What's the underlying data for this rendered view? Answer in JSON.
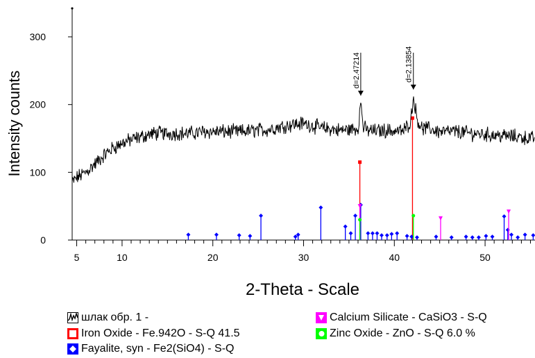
{
  "chart_data": {
    "type": "line",
    "xlabel": "2-Theta - Scale",
    "ylabel": "Intensity counts",
    "xlim": [
      4.5,
      55.5
    ],
    "ylim": [
      0,
      340
    ],
    "x_ticks": [
      5,
      10,
      20,
      30,
      40,
      50
    ],
    "y_ticks": [
      0,
      100,
      200,
      300
    ],
    "grid": false,
    "legend_position": "bottom",
    "pattern": {
      "name": "шлак обр. 1 -",
      "color": "#000000",
      "points": [
        [
          4.5,
          85
        ],
        [
          5,
          92
        ],
        [
          6,
          100
        ],
        [
          7,
          112
        ],
        [
          8,
          125
        ],
        [
          9,
          136
        ],
        [
          10,
          143
        ],
        [
          11,
          148
        ],
        [
          12,
          152
        ],
        [
          13,
          156
        ],
        [
          14,
          158
        ],
        [
          15,
          157
        ],
        [
          16,
          158
        ],
        [
          17,
          157
        ],
        [
          18,
          158
        ],
        [
          19,
          160
        ],
        [
          20,
          160
        ],
        [
          21,
          160
        ],
        [
          22,
          160
        ],
        [
          23,
          160
        ],
        [
          24,
          161
        ],
        [
          25,
          162
        ],
        [
          26,
          163
        ],
        [
          27,
          166
        ],
        [
          28,
          169
        ],
        [
          29,
          171
        ],
        [
          30,
          172
        ],
        [
          31,
          169
        ],
        [
          32,
          165
        ],
        [
          33,
          164
        ],
        [
          34,
          162
        ],
        [
          35,
          163
        ],
        [
          36,
          165
        ],
        [
          36.3,
          203
        ],
        [
          36.6,
          166
        ],
        [
          37,
          162
        ],
        [
          38,
          161
        ],
        [
          39,
          162
        ],
        [
          40,
          161
        ],
        [
          41,
          161
        ],
        [
          41.8,
          175
        ],
        [
          42.1,
          212
        ],
        [
          42.5,
          180
        ],
        [
          43,
          165
        ],
        [
          44,
          164
        ],
        [
          45,
          160
        ],
        [
          46,
          160
        ],
        [
          47,
          160
        ],
        [
          48,
          158
        ],
        [
          49,
          157
        ],
        [
          50,
          156
        ],
        [
          51,
          155
        ],
        [
          52,
          154
        ],
        [
          53,
          153
        ],
        [
          54,
          152
        ],
        [
          55,
          150
        ],
        [
          55.5,
          150
        ]
      ],
      "start_marker_y": 342
    },
    "peak_labels": [
      {
        "x": 36.3,
        "y": 203,
        "text": "d=2.47214"
      },
      {
        "x": 42.1,
        "y": 212,
        "text": "d=2.13854"
      }
    ],
    "reference_series": [
      {
        "name": "Iron Oxide - Fe.942O - S-Q 41.5",
        "color": "#ff0000",
        "marker": "square",
        "sticks": [
          [
            36.2,
            115
          ],
          [
            42.0,
            180
          ]
        ]
      },
      {
        "name": "Fayalite, syn - Fe2(SiO4) - S-Q",
        "color": "#0000ff",
        "marker": "diamond",
        "sticks": [
          [
            17.3,
            8
          ],
          [
            20.4,
            8
          ],
          [
            22.9,
            7
          ],
          [
            24.1,
            6
          ],
          [
            25.3,
            36
          ],
          [
            29.1,
            5
          ],
          [
            29.4,
            8
          ],
          [
            31.9,
            48
          ],
          [
            34.6,
            20
          ],
          [
            35.2,
            10
          ],
          [
            35.7,
            36
          ],
          [
            36.3,
            52
          ],
          [
            37.1,
            10
          ],
          [
            37.6,
            10
          ],
          [
            38.1,
            10
          ],
          [
            38.6,
            7
          ],
          [
            39.2,
            7
          ],
          [
            39.7,
            9
          ],
          [
            40.3,
            10
          ],
          [
            41.4,
            6
          ],
          [
            41.9,
            5
          ],
          [
            42.5,
            4
          ],
          [
            44.6,
            5
          ],
          [
            46.3,
            4
          ],
          [
            47.9,
            5
          ],
          [
            48.6,
            4
          ],
          [
            49.3,
            4
          ],
          [
            50.1,
            6
          ],
          [
            50.8,
            5
          ],
          [
            52.1,
            35
          ],
          [
            52.5,
            15
          ],
          [
            52.9,
            8
          ],
          [
            53.6,
            4
          ],
          [
            54.4,
            8
          ],
          [
            55.3,
            7
          ]
        ]
      },
      {
        "name": "Calcium Silicate - CaSiO3 - S-Q",
        "color": "#ff00ff",
        "marker": "triangle-down",
        "sticks": [
          [
            36.2,
            50
          ],
          [
            45.1,
            32
          ],
          [
            52.6,
            42
          ]
        ]
      },
      {
        "name": "Zinc Oxide - ZnO - S-Q 6.0 %",
        "color": "#00ff00",
        "marker": "circle",
        "sticks": [
          [
            36.2,
            30
          ],
          [
            42.1,
            36
          ]
        ]
      }
    ]
  },
  "legend": {
    "items": [
      {
        "label": "шлак обр. 1 -",
        "icon": "pattern-wave-icon",
        "color": "#000000"
      },
      {
        "label": "Iron Oxide - Fe.942O - S-Q 41.5",
        "icon": "red-square-icon",
        "color": "#ff0000"
      },
      {
        "label": "Fayalite, syn - Fe2(SiO4) - S-Q",
        "icon": "blue-diamond-icon",
        "color": "#0000ff"
      },
      {
        "label": "Calcium Silicate - CaSiO3 - S-Q",
        "icon": "magenta-triangle-icon",
        "color": "#ff00ff"
      },
      {
        "label": "Zinc Oxide - ZnO - S-Q 6.0 %",
        "icon": "green-circle-icon",
        "color": "#00ff00"
      }
    ]
  }
}
